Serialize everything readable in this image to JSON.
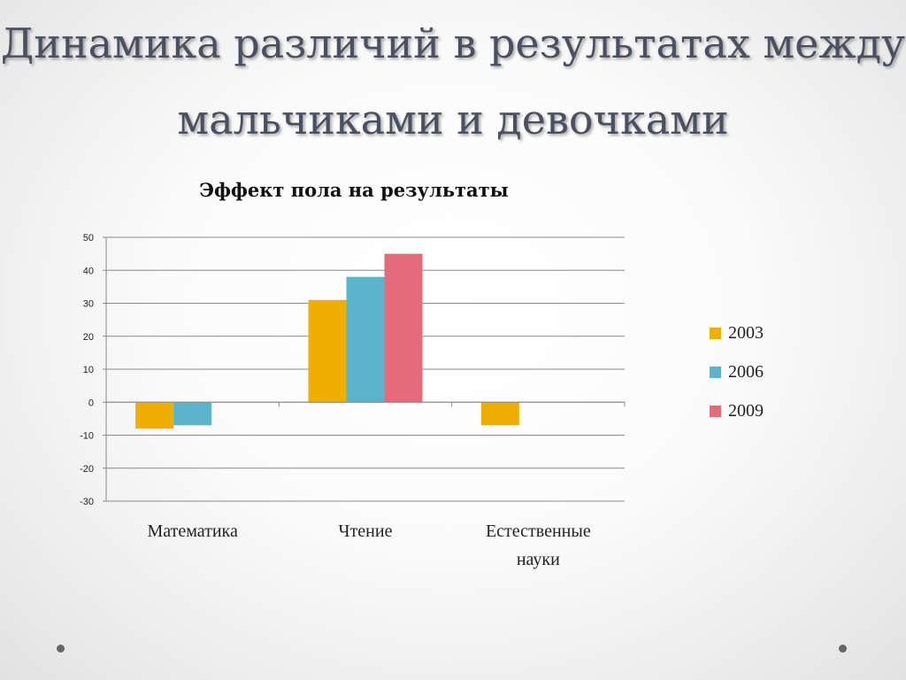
{
  "slide": {
    "title_line1": "Динамика различий в результатах между",
    "title_line2": "мальчиками и девочками"
  },
  "chart_data": {
    "type": "bar",
    "title": "Эффект пола на результаты",
    "categories": [
      "Математика",
      "Чтение",
      "Естественные науки"
    ],
    "category_lines": [
      [
        "Математика"
      ],
      [
        "Чтение"
      ],
      [
        "Естественные",
        "науки"
      ]
    ],
    "series": [
      {
        "name": "2003",
        "color": "#f0ae00",
        "values": [
          -8,
          31,
          -7
        ]
      },
      {
        "name": "2006",
        "color": "#5ab5cc",
        "values": [
          -7,
          38,
          null
        ]
      },
      {
        "name": "2009",
        "color": "#e66b7a",
        "values": [
          null,
          45,
          null
        ]
      }
    ],
    "ylim": [
      -30,
      50
    ],
    "yticks": [
      50,
      40,
      30,
      20,
      10,
      0,
      -10,
      -20,
      -30
    ],
    "grid": true,
    "legend_position": "right"
  }
}
